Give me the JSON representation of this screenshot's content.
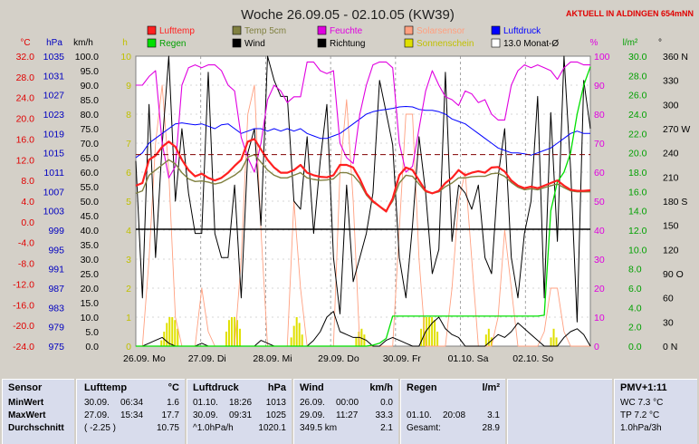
{
  "header": {
    "title": "Woche 26.09.05 - 02.10.05 (KW39)",
    "live_label": "AKTUELL IN ALDINGEN 654mNN"
  },
  "legend": [
    {
      "label": "Lufttemp",
      "color": "#ff2020"
    },
    {
      "label": "Temp 5cm",
      "color": "#808040"
    },
    {
      "label": "Feuchte",
      "color": "#e000e0"
    },
    {
      "label": "Solarsensor",
      "color": "#ffa080"
    },
    {
      "label": "Luftdruck",
      "color": "#0000ff"
    },
    {
      "label": "Regen",
      "color": "#00e000"
    },
    {
      "label": "Wind",
      "color": "#000000"
    },
    {
      "label": "Richtung",
      "color": "#000000"
    },
    {
      "label": "Sonnenschein",
      "color": "#e0e000"
    },
    {
      "label": "13.0 Monat-Ø",
      "color": "#ffffff"
    }
  ],
  "chart_data": {
    "type": "line",
    "title": "Woche 26.09.05 - 02.10.05 (KW39)",
    "x_ticks": [
      "26.09. Mo",
      "27.09. Di",
      "28.09. Mi",
      "29.09. Do",
      "30.09. Fr",
      "01.10. Sa",
      "02.10. So"
    ],
    "axes": {
      "temp": {
        "unit": "°C",
        "ticks": [
          "32.0",
          "28.0",
          "24.0",
          "20.0",
          "16.0",
          "12.0",
          "8.0",
          "4.0",
          "0.0",
          "-4.0",
          "-8.0",
          "-12.0",
          "-16.0",
          "-20.0",
          "-24.0"
        ],
        "range": [
          -24,
          32
        ]
      },
      "pressure": {
        "unit": "hPa",
        "ticks": [
          "1035",
          "1031",
          "1027",
          "1023",
          "1019",
          "1015",
          "1011",
          "1007",
          "1003",
          "999",
          "995",
          "991",
          "987",
          "983",
          "979",
          "975"
        ],
        "range": [
          975,
          1035
        ]
      },
      "wind": {
        "unit": "km/h",
        "ticks": [
          "100.0",
          "95.0",
          "90.0",
          "85.0",
          "80.0",
          "75.0",
          "70.0",
          "65.0",
          "60.0",
          "55.0",
          "50.0",
          "45.0",
          "40.0",
          "35.0",
          "30.0",
          "25.0",
          "20.0",
          "15.0",
          "10.0",
          "5.0",
          "0.0"
        ],
        "range": [
          0,
          100
        ]
      },
      "sun": {
        "unit": "h",
        "ticks": [
          "10",
          "9",
          "8",
          "7",
          "6",
          "5",
          "4",
          "3",
          "2",
          "1",
          "0"
        ],
        "range": [
          0,
          10
        ]
      },
      "humidity": {
        "unit": "%",
        "ticks": [
          "100",
          "90",
          "80",
          "70",
          "60",
          "50",
          "40",
          "30",
          "20",
          "10",
          "0"
        ],
        "range": [
          0,
          100
        ]
      },
      "rain": {
        "unit": "l/m²",
        "ticks": [
          "30.0",
          "28.0",
          "26.0",
          "24.0",
          "22.0",
          "20.0",
          "18.0",
          "16.0",
          "14.0",
          "12.0",
          "10.0",
          "8.0",
          "6.0",
          "4.0",
          "2.0",
          "0.0"
        ],
        "range": [
          0,
          30
        ]
      },
      "direction": {
        "unit": "°",
        "ticks": [
          "360 N",
          "330",
          "300",
          "270 W",
          "240",
          "210",
          "180 S",
          "150",
          "120",
          "90 O",
          "60",
          "30",
          "0 N"
        ],
        "range": [
          0,
          360
        ]
      }
    },
    "month_avg": 13.0,
    "series": [
      {
        "name": "Lufttemp",
        "color": "#ff2020",
        "axis": "temp",
        "values": [
          7,
          7.5,
          12,
          12.8,
          14.5,
          15.5,
          14.5,
          12,
          10,
          8.8,
          9.3,
          8.5,
          8,
          8.5,
          9.5,
          10.8,
          12,
          15.5,
          16,
          14,
          12,
          10.5,
          9.5,
          9.5,
          10,
          11,
          9.5,
          9,
          8.7,
          8.6,
          9,
          11,
          11,
          10.5,
          8.3,
          5.5,
          4,
          3,
          2,
          4.5,
          9,
          10.5,
          10,
          8,
          6,
          5.5,
          6,
          7.5,
          8.5,
          10,
          9,
          9.5,
          9.8,
          9.5,
          10.5,
          10.6,
          9.7,
          8,
          7,
          6.5,
          6.8,
          6.5,
          7,
          7.5,
          8,
          7,
          6.2,
          6,
          6,
          6.1
        ]
      },
      {
        "name": "Temp 5cm",
        "color": "#808040",
        "axis": "temp",
        "values": [
          5.5,
          6,
          9,
          10,
          11,
          12,
          11.2,
          9.5,
          8.3,
          7.8,
          7.9,
          7.7,
          7.3,
          7.6,
          8.3,
          9,
          10,
          12.5,
          13,
          11.5,
          10,
          9,
          8.5,
          8.5,
          9,
          9.5,
          8.5,
          8.2,
          8,
          8.1,
          8.3,
          9.5,
          9.5,
          9,
          7.5,
          5.2,
          3.8,
          3,
          2.2,
          4,
          7.5,
          9,
          8.8,
          7.3,
          5.8,
          5.5,
          5.8,
          6.8,
          7.5,
          8.5,
          8.5,
          8.7,
          8.8,
          8.8,
          9.3,
          9.4,
          8.8,
          7.6,
          6.7,
          6.2,
          6.4,
          6.2,
          6.6,
          7,
          7.3,
          6.6,
          6,
          5.8,
          5.8,
          5.8
        ]
      },
      {
        "name": "Feuchte",
        "color": "#e000e0",
        "axis": "humidity",
        "values": [
          90,
          90,
          93,
          95,
          70,
          58,
          62,
          90,
          96,
          97,
          96,
          97,
          97,
          95,
          90,
          88,
          72,
          65,
          60,
          70,
          85,
          90,
          88,
          84,
          86,
          86,
          98,
          98,
          95,
          94,
          95,
          70,
          65,
          63,
          80,
          90,
          97,
          98,
          98,
          96,
          70,
          60,
          62,
          75,
          88,
          95,
          90,
          86,
          85,
          83,
          88,
          87,
          84,
          85,
          80,
          78,
          78,
          90,
          95,
          97,
          96,
          97,
          96,
          95,
          92,
          96,
          98,
          98,
          97,
          97
        ]
      },
      {
        "name": "Luftdruck",
        "color": "#0000ff",
        "axis": "pressure",
        "values": [
          1014,
          1015,
          1017,
          1018,
          1019,
          1020,
          1021,
          1021.2,
          1021,
          1020.8,
          1021,
          1020.5,
          1020,
          1020.8,
          1021,
          1020,
          1019,
          1019.5,
          1020,
          1020,
          1019.5,
          1020,
          1019.5,
          1020,
          1019.5,
          1020,
          1019,
          1018.5,
          1018,
          1018,
          1018.5,
          1019,
          1020,
          1021,
          1022,
          1023,
          1023.5,
          1023.8,
          1024,
          1024.2,
          1024.5,
          1024.6,
          1024.5,
          1024,
          1023.8,
          1023.8,
          1023.5,
          1023,
          1022,
          1021.5,
          1021,
          1020,
          1019,
          1018,
          1017,
          1016,
          1015.5,
          1015,
          1015,
          1014.8,
          1014.5,
          1015,
          1015.5,
          1016,
          1017,
          1018,
          1019,
          1019.5,
          1019,
          1019
        ]
      },
      {
        "name": "Regen",
        "color": "#00e000",
        "axis": "rain",
        "values": [
          0,
          0,
          0,
          0,
          0,
          0,
          0,
          0,
          0,
          0,
          0,
          0,
          0,
          0,
          0,
          0,
          0,
          0,
          0,
          0,
          0,
          0,
          0,
          0,
          0,
          0,
          0,
          0,
          0,
          0,
          0,
          0,
          0,
          0,
          0,
          0,
          0.1,
          0.3,
          0.8,
          3.1,
          3.1,
          3.1,
          3.1,
          3.1,
          3.1,
          3.1,
          3.1,
          3.1,
          3.1,
          3.1,
          3.1,
          3.1,
          3.1,
          3.1,
          3.1,
          3.1,
          3.1,
          3.1,
          3.1,
          3.1,
          3.1,
          3.1,
          3.2,
          14,
          17,
          18,
          20,
          24,
          27,
          28.9
        ]
      },
      {
        "name": "Wind",
        "color": "#000000",
        "axis": "wind",
        "values": [
          0,
          0,
          1,
          2,
          3,
          1,
          0,
          0,
          0,
          0,
          1,
          0,
          0,
          0,
          0,
          0,
          0,
          0,
          0,
          2,
          1,
          0,
          0,
          0,
          0,
          0,
          0,
          2,
          5,
          10,
          12,
          5,
          4,
          3,
          3,
          2,
          0,
          0,
          2,
          3,
          2,
          1,
          0,
          0,
          5,
          8,
          10,
          6,
          4,
          3,
          0,
          0,
          0,
          0,
          2,
          4,
          3,
          5,
          8,
          6,
          4,
          2,
          0,
          0,
          0,
          3,
          5,
          6,
          4,
          0
        ]
      },
      {
        "name": "Richtung",
        "color": "#000000",
        "axis": "direction",
        "values": [
          230,
          60,
          300,
          110,
          250,
          360,
          180,
          270,
          190,
          140,
          140,
          340,
          140,
          110,
          110,
          200,
          60,
          240,
          270,
          150,
          360,
          330,
          310,
          310,
          180,
          170,
          260,
          140,
          230,
          300,
          110,
          40,
          200,
          80,
          110,
          140,
          190,
          330,
          290,
          250,
          110,
          60,
          150,
          260,
          190,
          90,
          120,
          340,
          130,
          200,
          190,
          170,
          200,
          110,
          90,
          210,
          270,
          110,
          60,
          140,
          180,
          310,
          60,
          290,
          130,
          360,
          220,
          30,
          330,
          270
        ]
      },
      {
        "name": "Solarsensor",
        "color": "#ffa080",
        "axis": "humidity",
        "values": [
          0,
          0,
          30,
          70,
          90,
          60,
          10,
          0,
          0,
          0,
          20,
          5,
          0,
          0,
          0,
          0,
          30,
          80,
          90,
          40,
          0,
          0,
          0,
          0,
          50,
          20,
          0,
          0,
          0,
          0,
          0,
          60,
          85,
          50,
          0,
          0,
          0,
          0,
          0,
          0,
          40,
          80,
          80,
          30,
          0,
          0,
          0,
          0,
          20,
          50,
          60,
          30,
          0,
          0,
          0,
          10,
          40,
          20,
          0,
          0,
          0,
          0,
          5,
          20,
          20,
          5,
          0,
          0,
          0,
          0
        ]
      }
    ],
    "sunshine_bars": [
      {
        "day": 0,
        "values": [
          0.2,
          0.5,
          0.8,
          1,
          1,
          0.9,
          0.6
        ]
      },
      {
        "day": 1,
        "values": [
          0.5,
          0.9,
          1,
          1,
          0.9,
          0.6
        ]
      },
      {
        "day": 2,
        "values": [
          0.3,
          0.7,
          1,
          0.8,
          0.4
        ]
      },
      {
        "day": 3,
        "values": [
          0.3,
          0.5,
          0.6,
          0.4
        ]
      },
      {
        "day": 4,
        "values": [
          0.6,
          1,
          1,
          1,
          1,
          0.9,
          0.5
        ]
      },
      {
        "day": 5,
        "values": [
          0.4,
          0.6,
          0.3
        ]
      },
      {
        "day": 6,
        "values": [
          0.3,
          0.6,
          0.3
        ]
      }
    ]
  },
  "stats": {
    "sensor": {
      "header": "Sensor",
      "rows": [
        "MinWert",
        "MaxWert",
        "Durchschnitt"
      ]
    },
    "lufttemp": {
      "header": "Lufttemp",
      "unit": "°C",
      "rows": [
        {
          "date": "30.09.",
          "time": "06:34",
          "value": "1.6"
        },
        {
          "date": "27.09.",
          "time": "15:34",
          "value": "17.7"
        },
        {
          "date": "( -2.25 )",
          "time": "",
          "value": "10.75"
        }
      ]
    },
    "luftdruck": {
      "header": "Luftdruck",
      "unit": "hPa",
      "rows": [
        {
          "date": "01.10.",
          "time": "18:26",
          "value": "1013"
        },
        {
          "date": "30.09.",
          "time": "09:31",
          "value": "1025"
        },
        {
          "date": "^1.0hPa/h",
          "time": "",
          "value": "1020.1"
        }
      ]
    },
    "wind": {
      "header": "Wind",
      "unit": "km/h",
      "rows": [
        {
          "date": "26.09.",
          "time": "00:00",
          "value": "0.0"
        },
        {
          "date": "29.09.",
          "time": "11:27",
          "value": "33.3"
        },
        {
          "date": "349.5 km",
          "time": "",
          "value": "2.1"
        }
      ]
    },
    "regen": {
      "header": "Regen",
      "unit": "l/m²",
      "rows": [
        {
          "date": "",
          "time": "",
          "value": ""
        },
        {
          "date": "01.10.",
          "time": "20:08",
          "value": "3.1"
        },
        {
          "date": "Gesamt:",
          "time": "",
          "value": "28.9"
        }
      ]
    },
    "pmv": {
      "header": "PMV+1:11",
      "rows": [
        "WC 7.3 °C",
        "TP 7.2 °C",
        "1.0hPa/3h"
      ]
    }
  }
}
